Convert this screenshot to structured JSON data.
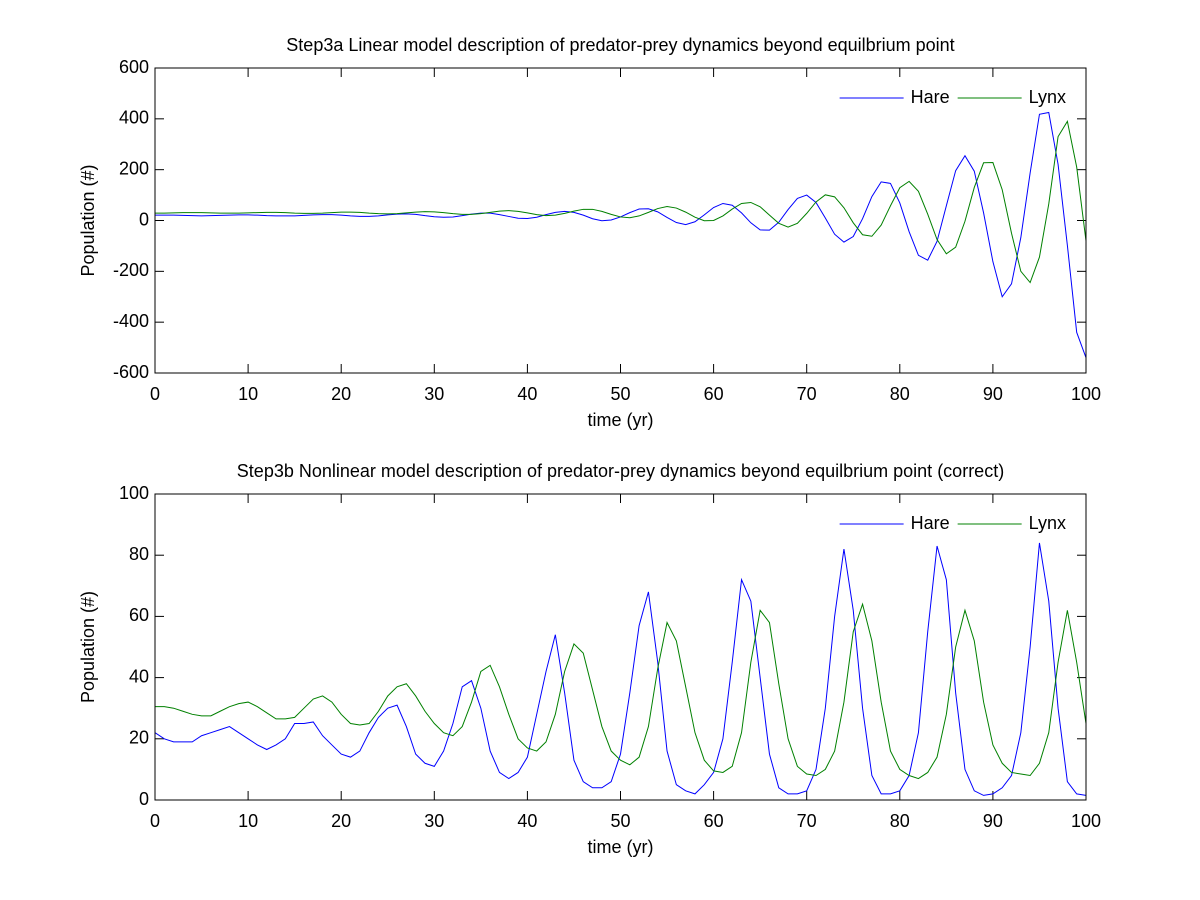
{
  "chart_data": [
    {
      "type": "line",
      "title": "Step3a Linear model description of predator-prey dynamics beyond equilbrium point",
      "xlabel": "time (yr)",
      "ylabel": "Population (#)",
      "x": [
        0,
        1,
        2,
        3,
        4,
        5,
        6,
        7,
        8,
        9,
        10,
        11,
        12,
        13,
        14,
        15,
        16,
        17,
        18,
        19,
        20,
        21,
        22,
        23,
        24,
        25,
        26,
        27,
        28,
        29,
        30,
        31,
        32,
        33,
        34,
        35,
        36,
        37,
        38,
        39,
        40,
        41,
        42,
        43,
        44,
        45,
        46,
        47,
        48,
        49,
        50,
        51,
        52,
        53,
        54,
        55,
        56,
        57,
        58,
        59,
        60,
        61,
        62,
        63,
        64,
        65,
        66,
        67,
        68,
        69,
        70,
        71,
        72,
        73,
        74,
        75,
        76,
        77,
        78,
        79,
        80,
        81,
        82,
        83,
        84,
        85,
        86,
        87,
        88,
        89,
        90,
        91,
        92,
        93,
        94,
        95,
        96,
        97,
        98,
        99,
        100
      ],
      "series": [
        {
          "name": "Hare",
          "color": "#0000ff",
          "values": [
            21,
            21,
            21,
            20,
            19,
            18,
            19,
            20,
            21,
            22,
            22,
            21,
            19,
            18,
            18,
            18,
            20,
            22,
            23,
            23,
            21,
            18,
            16,
            16,
            18,
            22,
            25,
            26,
            24,
            19,
            15,
            13,
            14,
            19,
            25,
            29,
            29,
            23,
            16,
            9,
            8,
            13,
            23,
            32,
            36,
            32,
            21,
            7,
            -1,
            2,
            14,
            31,
            45,
            46,
            34,
            12,
            -8,
            -16,
            -5,
            22,
            51,
            67,
            60,
            30,
            -9,
            -37,
            -38,
            -7,
            43,
            87,
            100,
            71,
            10,
            -54,
            -85,
            -63,
            7,
            94,
            152,
            146,
            69,
            -44,
            -137,
            -156,
            -82,
            58,
            196,
            255,
            194,
            30,
            -162,
            -300,
            -249,
            -67,
            187,
            418,
            425,
            221,
            -98,
            -440,
            -540
          ]
        },
        {
          "name": "Lynx",
          "color": "#008000",
          "values": [
            29,
            29,
            30,
            31,
            31,
            31,
            30,
            29,
            29,
            29,
            30,
            31,
            32,
            32,
            31,
            29,
            28,
            28,
            29,
            31,
            33,
            33,
            32,
            29,
            27,
            26,
            27,
            30,
            33,
            35,
            34,
            31,
            27,
            24,
            24,
            27,
            32,
            37,
            39,
            36,
            30,
            23,
            19,
            21,
            28,
            37,
            44,
            44,
            36,
            24,
            14,
            11,
            18,
            32,
            47,
            55,
            49,
            33,
            13,
            -1,
            0,
            18,
            45,
            67,
            71,
            54,
            21,
            -11,
            -26,
            -11,
            28,
            73,
            101,
            93,
            50,
            -9,
            -56,
            -62,
            -18,
            58,
            129,
            154,
            115,
            25,
            -75,
            -131,
            -105,
            -3,
            130,
            227,
            228,
            121,
            -50,
            -200,
            -244,
            -144,
            65,
            330,
            390,
            210,
            -80
          ]
        }
      ],
      "xlim": [
        0,
        100
      ],
      "xticks": [
        0,
        10,
        20,
        30,
        40,
        50,
        60,
        70,
        80,
        90,
        100
      ],
      "ylim": [
        -600,
        600
      ],
      "yticks": [
        -600,
        -400,
        -200,
        0,
        200,
        400,
        600
      ],
      "legend": "northeast"
    },
    {
      "type": "line",
      "title": "Step3b Nonlinear model description of predator-prey dynamics beyond equilbrium point (correct)",
      "xlabel": "time (yr)",
      "ylabel": "Population (#)",
      "x": [
        0,
        1,
        2,
        3,
        4,
        5,
        6,
        7,
        8,
        9,
        10,
        11,
        12,
        13,
        14,
        15,
        16,
        17,
        18,
        19,
        20,
        21,
        22,
        23,
        24,
        25,
        26,
        27,
        28,
        29,
        30,
        31,
        32,
        33,
        34,
        35,
        36,
        37,
        38,
        39,
        40,
        41,
        42,
        43,
        44,
        45,
        46,
        47,
        48,
        49,
        50,
        51,
        52,
        53,
        54,
        55,
        56,
        57,
        58,
        59,
        60,
        61,
        62,
        63,
        64,
        65,
        66,
        67,
        68,
        69,
        70,
        71,
        72,
        73,
        74,
        75,
        76,
        77,
        78,
        79,
        80,
        81,
        82,
        83,
        84,
        85,
        86,
        87,
        88,
        89,
        90,
        91,
        92,
        93,
        94,
        95,
        96,
        97,
        98,
        99,
        100
      ],
      "series": [
        {
          "name": "Hare",
          "color": "#0000ff",
          "values": [
            22,
            20,
            19,
            19,
            19,
            21,
            22,
            23,
            24,
            22,
            20,
            18,
            16.5,
            18,
            20,
            25,
            25,
            25.5,
            21,
            18,
            15,
            14,
            16,
            22,
            27,
            30,
            31,
            24,
            15,
            12,
            11,
            16,
            25,
            37,
            39,
            30,
            16,
            9,
            7,
            9,
            14,
            28,
            42,
            54,
            35,
            13,
            6,
            4,
            4,
            6,
            15,
            35,
            57,
            68,
            45,
            16,
            5,
            3,
            2,
            5,
            9,
            20,
            45,
            72,
            65,
            40,
            15,
            4,
            2,
            2,
            3,
            10,
            30,
            60,
            82,
            62,
            30,
            8,
            2,
            2,
            3,
            8,
            22,
            55,
            83,
            72,
            35,
            10,
            3,
            1.5,
            2,
            4,
            8,
            22,
            50,
            84,
            65,
            30,
            6,
            2,
            1.5
          ]
        },
        {
          "name": "Lynx",
          "color": "#008000",
          "values": [
            30.5,
            30.5,
            30,
            29,
            28,
            27.5,
            27.5,
            29,
            30.5,
            31.5,
            32,
            30.5,
            28.5,
            26.5,
            26.5,
            27,
            30,
            33,
            34,
            32,
            28,
            25,
            24.5,
            25,
            29,
            34,
            37,
            38,
            34,
            29,
            25,
            22,
            21,
            24,
            32,
            42,
            44,
            37,
            28,
            20,
            17,
            16,
            19,
            28,
            42,
            51,
            48,
            36,
            24,
            16,
            13,
            11.5,
            14,
            24,
            43,
            58,
            52,
            37,
            22,
            13,
            9.5,
            9,
            11,
            22,
            45,
            62,
            58,
            38,
            20,
            11,
            8.5,
            8,
            10,
            16,
            32,
            55,
            64,
            52,
            32,
            16,
            10,
            8,
            7,
            9,
            14,
            28,
            50,
            62,
            52,
            32,
            18,
            12,
            9,
            8.5,
            8,
            12,
            22,
            45,
            62,
            45,
            25
          ]
        }
      ],
      "xlim": [
        0,
        100
      ],
      "xticks": [
        0,
        10,
        20,
        30,
        40,
        50,
        60,
        70,
        80,
        90,
        100
      ],
      "ylim": [
        0,
        100
      ],
      "yticks": [
        0,
        20,
        40,
        60,
        80,
        100
      ],
      "legend": "northeast"
    }
  ]
}
